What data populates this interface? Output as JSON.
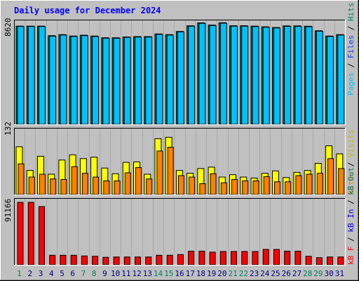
{
  "chart_data": [
    {
      "type": "bar",
      "title": "Daily usage for December 2024",
      "categories": [
        "1",
        "2",
        "3",
        "4",
        "5",
        "6",
        "7",
        "8",
        "9",
        "10",
        "11",
        "12",
        "13",
        "14",
        "15",
        "16",
        "17",
        "18",
        "19",
        "20",
        "21",
        "22",
        "23",
        "24",
        "25",
        "26",
        "27",
        "28",
        "29",
        "30",
        "31"
      ],
      "weekend_days": [
        "1",
        "7",
        "8",
        "14",
        "15",
        "21",
        "22",
        "28",
        "29"
      ],
      "ymax_label": "8620",
      "ylim": [
        0,
        8620
      ],
      "right_label": [
        "Pages",
        "Files",
        "Hits"
      ],
      "series": [
        {
          "name": "Hits",
          "values": [
            8430,
            8430,
            8430,
            7610,
            7700,
            7580,
            7650,
            7580,
            7430,
            7430,
            7500,
            7530,
            7530,
            7760,
            7700,
            7970,
            8460,
            8710,
            8520,
            8720,
            8460,
            8460,
            8430,
            8370,
            8310,
            8450,
            8450,
            8420,
            8030,
            7580,
            7700
          ]
        },
        {
          "name": "Files",
          "values": [
            8400,
            8400,
            8400,
            7560,
            7660,
            7540,
            7610,
            7540,
            7390,
            7390,
            7460,
            7490,
            7490,
            7720,
            7660,
            7930,
            8420,
            8670,
            8480,
            8680,
            8420,
            8420,
            8390,
            8330,
            8270,
            8410,
            8410,
            8380,
            7990,
            7540,
            7660
          ]
        }
      ]
    },
    {
      "type": "bar",
      "ymax_label": "132",
      "ylim": [
        0,
        132
      ],
      "right_label": [
        "Sites",
        "Visits"
      ],
      "series": [
        {
          "name": "Visits",
          "values": [
            101,
            51,
            81,
            43,
            73,
            84,
            76,
            79,
            56,
            44,
            68,
            69,
            43,
            118,
            121,
            51,
            45,
            55,
            58,
            37,
            42,
            37,
            35,
            45,
            50,
            36,
            47,
            51,
            66,
            103,
            86
          ]
        },
        {
          "name": "Sites",
          "values": [
            65,
            37,
            43,
            33,
            32,
            59,
            45,
            37,
            29,
            29,
            46,
            57,
            33,
            92,
            100,
            40,
            37,
            23,
            44,
            25,
            32,
            29,
            29,
            38,
            27,
            27,
            40,
            43,
            45,
            76,
            55
          ]
        }
      ]
    },
    {
      "type": "bar",
      "ymax_label": "91166",
      "ylim": [
        0,
        91166
      ],
      "right_label": [
        "kB F",
        "kB In",
        "kB Out"
      ],
      "series": [
        {
          "name": "kB F",
          "values": [
            91166,
            91166,
            85000,
            14000,
            14000,
            14000,
            13000,
            12500,
            11000,
            11500,
            11500,
            11500,
            11500,
            14000,
            14000,
            15000,
            20000,
            20000,
            18500,
            19500,
            19500,
            19500,
            19500,
            22500,
            22500,
            20000,
            20000,
            12500,
            10500,
            11500,
            11500
          ]
        }
      ]
    }
  ],
  "colors": {
    "background": "#c0c0c0",
    "title": "#0000ff",
    "hits": "#00805c",
    "files": "#0040ff",
    "pages": "#00c0ff",
    "visits": "#ffff00",
    "sites": "#ff8000",
    "kbf": "#ff0000",
    "kbin": "#0000ff",
    "kbout": "#00805c",
    "weekend": "#00805c",
    "weekday": "#000080"
  }
}
